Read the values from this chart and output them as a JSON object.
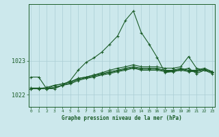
{
  "xlabel": "Graphe pression niveau de la mer (hPa)",
  "bg_color": "#cce8ec",
  "grid_color": "#aacdd4",
  "line_color": "#1a5c28",
  "ylim": [
    1021.65,
    1024.65
  ],
  "xlim": [
    -0.3,
    23.3
  ],
  "yticks": [
    1022,
    1023
  ],
  "xticks": [
    0,
    1,
    2,
    3,
    4,
    5,
    6,
    7,
    8,
    9,
    10,
    11,
    12,
    13,
    14,
    15,
    16,
    17,
    18,
    19,
    20,
    21,
    22,
    23
  ],
  "lines": [
    [
      1022.52,
      1022.52,
      1022.18,
      1022.18,
      1022.28,
      1022.42,
      1022.72,
      1022.95,
      1023.08,
      1023.25,
      1023.48,
      1023.72,
      1024.18,
      1024.45,
      1023.82,
      1023.48,
      1023.1,
      1022.65,
      1022.68,
      1022.72,
      1022.78,
      1022.62,
      1022.72,
      1022.68
    ],
    [
      1022.2,
      1022.2,
      1022.18,
      1022.28,
      1022.32,
      1022.38,
      1022.48,
      1022.52,
      1022.58,
      1022.65,
      1022.72,
      1022.78,
      1022.82,
      1022.88,
      1022.82,
      1022.82,
      1022.82,
      1022.78,
      1022.78,
      1022.82,
      1023.12,
      1022.78,
      1022.72,
      1022.68
    ],
    [
      1022.18,
      1022.18,
      1022.18,
      1022.22,
      1022.28,
      1022.32,
      1022.42,
      1022.48,
      1022.52,
      1022.58,
      1022.62,
      1022.68,
      1022.72,
      1022.78,
      1022.72,
      1022.72,
      1022.72,
      1022.68,
      1022.68,
      1022.72,
      1022.68,
      1022.68,
      1022.72,
      1022.62
    ],
    [
      1022.18,
      1022.18,
      1022.22,
      1022.28,
      1022.32,
      1022.38,
      1022.48,
      1022.52,
      1022.58,
      1022.62,
      1022.68,
      1022.72,
      1022.78,
      1022.82,
      1022.78,
      1022.78,
      1022.78,
      1022.72,
      1022.72,
      1022.78,
      1022.72,
      1022.72,
      1022.78,
      1022.68
    ],
    [
      1022.18,
      1022.18,
      1022.18,
      1022.22,
      1022.28,
      1022.35,
      1022.45,
      1022.5,
      1022.55,
      1022.6,
      1022.65,
      1022.7,
      1022.75,
      1022.8,
      1022.75,
      1022.75,
      1022.75,
      1022.7,
      1022.7,
      1022.75,
      1022.7,
      1022.7,
      1022.75,
      1022.65
    ]
  ]
}
